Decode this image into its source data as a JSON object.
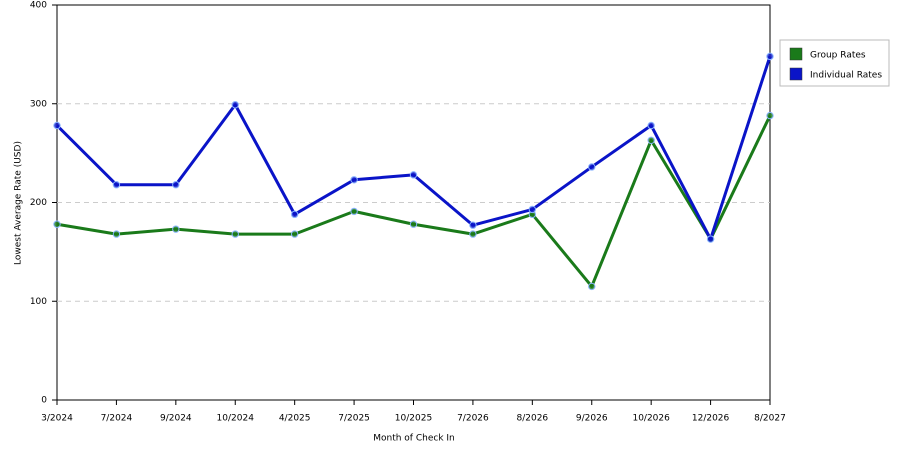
{
  "chart_data": {
    "type": "line",
    "x_label": "Month of Check In",
    "y_label": "Lowest Average Rate (USD)",
    "categories": [
      "3/2024",
      "7/2024",
      "9/2024",
      "10/2024",
      "4/2025",
      "7/2025",
      "10/2025",
      "7/2026",
      "8/2026",
      "9/2026",
      "10/2026",
      "12/2026",
      "8/2027"
    ],
    "series": [
      {
        "name": "Group Rates",
        "color": "#1a7a1a",
        "values": [
          178,
          168,
          173,
          168,
          168,
          191,
          178,
          168,
          188,
          115,
          263,
          163,
          288
        ]
      },
      {
        "name": "Individual Rates",
        "color": "#0a14c8",
        "values": [
          278,
          218,
          218,
          299,
          188,
          223,
          228,
          177,
          193,
          236,
          278,
          163,
          348
        ]
      }
    ],
    "ylim": [
      0,
      400
    ],
    "yticks": [
      0,
      100,
      200,
      300,
      400
    ],
    "grid": true,
    "legend": "right"
  }
}
